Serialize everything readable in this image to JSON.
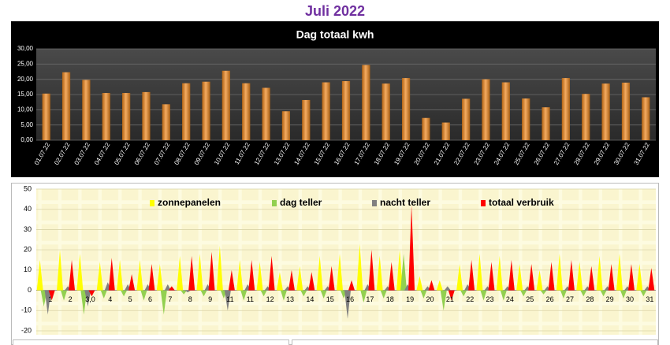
{
  "page_title": "Juli 2022",
  "chart_data": [
    {
      "type": "bar",
      "title": "Dag totaal kwh",
      "categories": [
        "01.07.22",
        "02.07.22",
        "03.07.22",
        "04.07.22",
        "05.07.22",
        "06.07.22",
        "07.07.22",
        "08.07.22",
        "09.07.22",
        "10.07.22",
        "11.07.22",
        "12.07.22",
        "13.07.22",
        "14.07.22",
        "15.07.22",
        "16.07.22",
        "17.07.22",
        "18.07.22",
        "19.07.22",
        "20.07.22",
        "21.07.22",
        "22.07.22",
        "23.07.22",
        "24.07.22",
        "25.07.22",
        "26.07.22",
        "27.07.22",
        "28.07.22",
        "29.07.22",
        "30.07.22",
        "31.07.22"
      ],
      "values": [
        15.3,
        22.3,
        19.8,
        15.5,
        15.5,
        15.8,
        11.8,
        18.7,
        19.2,
        22.8,
        18.7,
        17.2,
        9.5,
        13.2,
        19,
        19.4,
        24.7,
        18.6,
        20.4,
        7.3,
        5.8,
        13.6,
        20,
        19,
        13.7,
        10.8,
        20.4,
        15.2,
        18.6,
        18.9,
        14.1
      ],
      "color": "#f0881e",
      "ylim": [
        0,
        30
      ],
      "yticks": [
        {
          "value": 0,
          "label": "0,00"
        },
        {
          "value": 5,
          "label": "5,00"
        },
        {
          "value": 10,
          "label": "10,00"
        },
        {
          "value": 15,
          "label": "15,00"
        },
        {
          "value": 20,
          "label": "20,00"
        },
        {
          "value": 25,
          "label": "25,00"
        },
        {
          "value": 30,
          "label": "30,00"
        }
      ],
      "grid": true
    },
    {
      "type": "spike",
      "categories": [
        "1",
        "2",
        "3,0",
        "4",
        "5",
        "6",
        "7",
        "8",
        "9",
        "11",
        "11",
        "12",
        "13",
        "14",
        "15",
        "16",
        "17",
        "18",
        "19",
        "20",
        "21",
        "22",
        "23",
        "24",
        "25",
        "26",
        "27",
        "28",
        "29",
        "30",
        "31"
      ],
      "series": [
        {
          "name": "zonnepanelen",
          "color": "#ffff00",
          "values": [
            15,
            20,
            18,
            14,
            15,
            15,
            13,
            17,
            18,
            22,
            15,
            14,
            9,
            12,
            17,
            18,
            23,
            17,
            20,
            7,
            5,
            13,
            18,
            17,
            13,
            10,
            18,
            14,
            17,
            18,
            13
          ]
        },
        {
          "name": "dag teller",
          "color": "#92d050",
          "values": [
            -8,
            -5,
            -12,
            -4,
            -3,
            -5,
            -12,
            -2,
            -3,
            -4,
            -5,
            -3,
            -5,
            -3,
            -4,
            -4,
            -6,
            -4,
            18,
            -4,
            -10,
            -3,
            -5,
            -5,
            -3,
            -2,
            -4,
            -3,
            -3,
            -4,
            -3
          ]
        },
        {
          "name": "nacht teller",
          "color": "#808080",
          "values": [
            -12,
            2,
            -8,
            4,
            3,
            3,
            3,
            -1,
            3,
            -10,
            3,
            2,
            2,
            2,
            2,
            -14,
            3,
            2,
            3,
            2,
            2,
            3,
            2,
            2,
            2,
            2,
            2,
            2,
            2,
            2,
            2
          ]
        },
        {
          "name": "totaal verbruik",
          "color": "#ff0000",
          "values": [
            -5,
            15,
            -3,
            16,
            8,
            13,
            2,
            17,
            19,
            10,
            15,
            17,
            10,
            9,
            12,
            5,
            20,
            14,
            42,
            5,
            -5,
            15,
            14,
            15,
            13,
            14,
            15,
            12,
            13,
            13,
            11
          ]
        }
      ],
      "ylim": [
        -20,
        50
      ],
      "yticks": [
        -20,
        -10,
        0,
        10,
        20,
        30,
        40,
        50
      ],
      "grid": true
    }
  ]
}
